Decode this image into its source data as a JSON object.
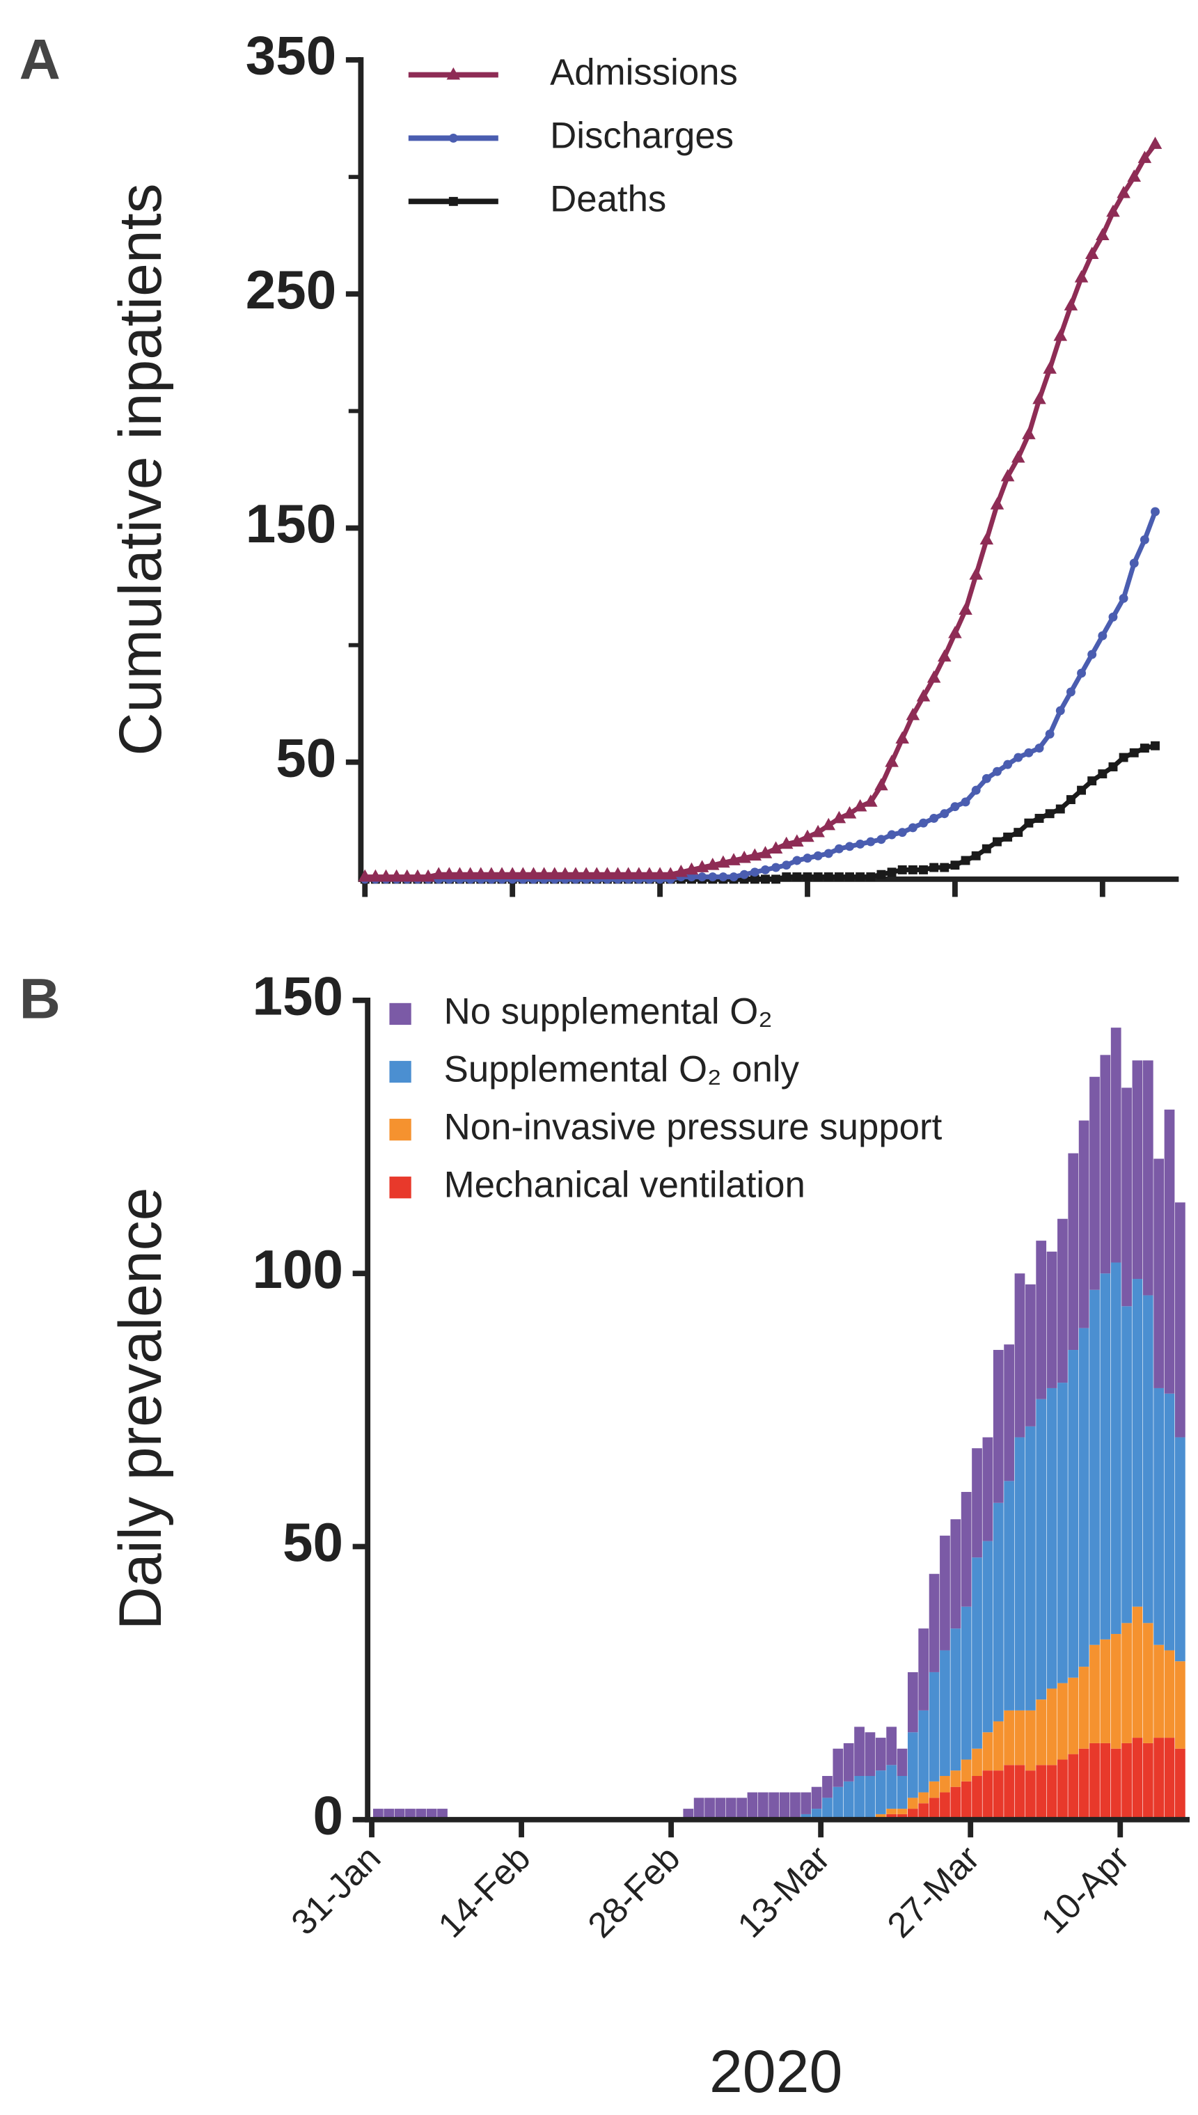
{
  "chart_data": [
    {
      "type": "line",
      "panel": "A",
      "y_label": "Cumulative inpatients",
      "ylim": [
        0,
        350
      ],
      "yticks": [
        50,
        150,
        250,
        350
      ],
      "yminor": [
        100,
        200,
        300
      ],
      "shared_x": true,
      "series": [
        {
          "name": "Admissions",
          "color": "#8e2c55",
          "marker": "triangle",
          "values": [
            1,
            1,
            1,
            1,
            1,
            1,
            1,
            2,
            2,
            2,
            2,
            2,
            2,
            2,
            2,
            2,
            2,
            2,
            2,
            2,
            2,
            2,
            2,
            2,
            2,
            2,
            2,
            2,
            2,
            2,
            3,
            4,
            5,
            6,
            7,
            8,
            9,
            10,
            11,
            13,
            15,
            16,
            18,
            20,
            23,
            26,
            28,
            31,
            33,
            40,
            50,
            60,
            70,
            78,
            86,
            95,
            105,
            115,
            130,
            145,
            160,
            172,
            180,
            190,
            205,
            218,
            232,
            245,
            257,
            267,
            275,
            285,
            293,
            300,
            308,
            314
          ]
        },
        {
          "name": "Discharges",
          "color": "#4a5db0",
          "marker": "circle",
          "values": [
            0,
            0,
            0,
            0,
            0,
            0,
            0,
            0,
            0,
            0,
            0,
            0,
            0,
            0,
            0,
            0,
            0,
            0,
            0,
            0,
            0,
            0,
            0,
            0,
            0,
            0,
            0,
            0,
            0,
            0,
            1,
            1,
            1,
            1,
            1,
            1,
            2,
            3,
            4,
            5,
            6,
            8,
            9,
            10,
            11,
            13,
            14,
            15,
            16,
            17,
            19,
            20,
            22,
            24,
            26,
            28,
            31,
            33,
            38,
            43,
            46,
            49,
            52,
            54,
            56,
            62,
            72,
            80,
            88,
            96,
            104,
            112,
            120,
            135,
            145,
            157
          ]
        },
        {
          "name": "Deaths",
          "color": "#1a1a1a",
          "marker": "square",
          "values": [
            0,
            0,
            0,
            0,
            0,
            0,
            0,
            0,
            0,
            0,
            0,
            0,
            0,
            0,
            0,
            0,
            0,
            0,
            0,
            0,
            0,
            0,
            0,
            0,
            0,
            0,
            0,
            0,
            0,
            0,
            0,
            0,
            0,
            0,
            0,
            0,
            0,
            0,
            0,
            0,
            1,
            1,
            1,
            1,
            1,
            1,
            1,
            1,
            1,
            2,
            3,
            4,
            4,
            4,
            5,
            5,
            6,
            8,
            10,
            13,
            16,
            18,
            20,
            24,
            26,
            28,
            30,
            34,
            38,
            42,
            45,
            48,
            52,
            54,
            56,
            57
          ]
        }
      ]
    },
    {
      "type": "stacked_bar",
      "panel": "B",
      "y_label": "Daily prevalence",
      "x_label": "2020",
      "ylim": [
        0,
        150
      ],
      "yticks": [
        0,
        50,
        100,
        150
      ],
      "categories": [
        "31-Jan",
        null,
        null,
        null,
        null,
        null,
        null,
        null,
        null,
        null,
        null,
        null,
        null,
        null,
        "14-Feb",
        null,
        null,
        null,
        null,
        null,
        null,
        null,
        null,
        null,
        null,
        null,
        null,
        null,
        "28-Feb",
        null,
        null,
        null,
        null,
        null,
        null,
        null,
        null,
        null,
        null,
        null,
        null,
        null,
        "13-Mar",
        null,
        null,
        null,
        null,
        null,
        null,
        null,
        null,
        null,
        null,
        null,
        null,
        null,
        "27-Mar",
        null,
        null,
        null,
        null,
        null,
        null,
        null,
        null,
        null,
        null,
        null,
        null,
        null,
        "10-Apr",
        null,
        null,
        null,
        null,
        null
      ],
      "series": [
        {
          "name": "No supplemental O₂",
          "color": "#7b5aa6",
          "values": [
            2,
            2,
            2,
            2,
            2,
            2,
            2,
            0,
            0,
            0,
            0,
            0,
            0,
            0,
            0,
            0,
            0,
            0,
            0,
            0,
            0,
            0,
            0,
            0,
            0,
            0,
            0,
            0,
            0,
            2,
            4,
            4,
            4,
            4,
            4,
            5,
            5,
            5,
            5,
            5,
            4,
            4,
            4,
            7,
            7,
            9,
            8,
            6,
            7,
            5,
            11,
            15,
            18,
            21,
            20,
            21,
            20,
            19,
            28,
            25,
            30,
            26,
            29,
            25,
            30,
            36,
            38,
            39,
            40,
            43,
            40,
            40,
            43,
            42,
            52,
            43
          ]
        },
        {
          "name": "Supplemental O₂ only",
          "color": "#4b8fd1",
          "values": [
            0,
            0,
            0,
            0,
            0,
            0,
            0,
            0,
            0,
            0,
            0,
            0,
            0,
            0,
            0,
            0,
            0,
            0,
            0,
            0,
            0,
            0,
            0,
            0,
            0,
            0,
            0,
            0,
            0,
            0,
            0,
            0,
            0,
            0,
            0,
            0,
            0,
            0,
            0,
            0,
            1,
            2,
            4,
            6,
            7,
            8,
            8,
            8,
            8,
            6,
            12,
            15,
            20,
            23,
            26,
            28,
            35,
            35,
            40,
            42,
            50,
            52,
            55,
            55,
            55,
            60,
            62,
            65,
            67,
            68,
            58,
            60,
            60,
            47,
            47,
            41
          ]
        },
        {
          "name": "Non-invasive pressure support",
          "color": "#f5922f",
          "values": [
            0,
            0,
            0,
            0,
            0,
            0,
            0,
            0,
            0,
            0,
            0,
            0,
            0,
            0,
            0,
            0,
            0,
            0,
            0,
            0,
            0,
            0,
            0,
            0,
            0,
            0,
            0,
            0,
            0,
            0,
            0,
            0,
            0,
            0,
            0,
            0,
            0,
            0,
            0,
            0,
            0,
            0,
            0,
            0,
            0,
            0,
            0,
            1,
            1,
            1,
            2,
            2,
            3,
            3,
            3,
            4,
            5,
            7,
            9,
            10,
            10,
            11,
            12,
            14,
            14,
            14,
            15,
            18,
            19,
            21,
            22,
            24,
            22,
            17,
            16,
            16
          ]
        },
        {
          "name": "Mechanical ventilation",
          "color": "#e8392b",
          "values": [
            0,
            0,
            0,
            0,
            0,
            0,
            0,
            0,
            0,
            0,
            0,
            0,
            0,
            0,
            0,
            0,
            0,
            0,
            0,
            0,
            0,
            0,
            0,
            0,
            0,
            0,
            0,
            0,
            0,
            0,
            0,
            0,
            0,
            0,
            0,
            0,
            0,
            0,
            0,
            0,
            0,
            0,
            0,
            0,
            0,
            0,
            0,
            0,
            1,
            1,
            2,
            3,
            4,
            5,
            6,
            7,
            8,
            9,
            9,
            10,
            10,
            9,
            10,
            10,
            11,
            12,
            13,
            14,
            14,
            13,
            14,
            15,
            14,
            15,
            15,
            13
          ]
        }
      ]
    }
  ]
}
